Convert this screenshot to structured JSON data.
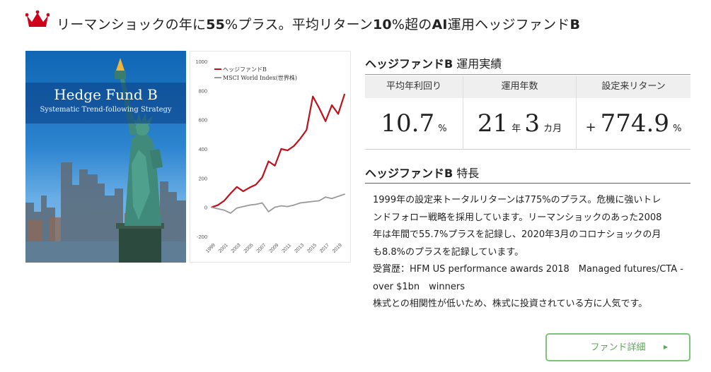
{
  "headline": {
    "part1": "リーマンショックの年に",
    "bold1": "55",
    "part2": "%プラス。平均リターン",
    "bold2": "10",
    "part3": "%超の",
    "bold3": "AI",
    "part4": "運用ヘッジファンド",
    "bold4": "B"
  },
  "icons": {
    "crown": "crown-icon",
    "arrow": "triangle-right-icon"
  },
  "colors": {
    "crown": "#d0021b",
    "fund_line": "#c0101a",
    "msci_line": "#9a9a9a",
    "feature_rule": "#c0392b",
    "button": "#7cc576"
  },
  "cover": {
    "title": "Hedge Fund B",
    "subtitle": "Systematic Trend-following Strategy"
  },
  "performance": {
    "title_bold": "ヘッジファンドB",
    "title_rest": " 運用実績",
    "avg_return": {
      "label": "平均年利回り",
      "value": "10.7",
      "unit": "%"
    },
    "years": {
      "label": "運用年数",
      "years_value": "21",
      "years_unit": "年",
      "months_value": "3",
      "months_unit": "カ月"
    },
    "total_return": {
      "label": "設定来リターン",
      "sign": "+",
      "value": "774.9",
      "unit": "%"
    }
  },
  "features": {
    "title_bold": "ヘッジファンドB",
    "title_rest": " 特長",
    "line1": "1999年の設定来トータルリターンは775%のプラス。危機に強いトレ",
    "line2": "ンドフォロー戦略を採用しています。リーマンショックのあった2008",
    "line3": "年は年間で55.7%プラスを記録し、2020年3月のコロナショックの月",
    "line4": "も8.8%のプラスを記録しています。",
    "line5": "受賞歴：HFM US performance awards 2018　Managed futures/CTA -",
    "line6": "over $1bn　winners",
    "line7": "株式との相関性が低いため、株式に投資されている方に人気です。"
  },
  "button": {
    "label": "ファンド詳細",
    "arrow": "▶"
  },
  "chart_data": {
    "type": "line",
    "title": "",
    "xlabel": "",
    "ylabel": "",
    "ylim": [
      -200,
      1000
    ],
    "y_ticks": [
      "1000",
      "800",
      "600",
      "400",
      "200",
      "0",
      "-200"
    ],
    "x_ticks": [
      "1999",
      "2001",
      "2003",
      "2005",
      "2007",
      "2009",
      "2011",
      "2013",
      "2015",
      "2017",
      "2019"
    ],
    "legend_position": "top-left",
    "grid": false,
    "x": [
      1999,
      2000,
      2001,
      2002,
      2003,
      2004,
      2005,
      2006,
      2007,
      2008,
      2009,
      2010,
      2011,
      2012,
      2013,
      2014,
      2015,
      2016,
      2017,
      2018,
      2019,
      2020
    ],
    "series": [
      {
        "name": "ヘッジファンドB",
        "color": "#c0101a",
        "values": [
          0,
          15,
          45,
          95,
          140,
          110,
          135,
          155,
          205,
          315,
          285,
          400,
          390,
          420,
          470,
          530,
          760,
          680,
          590,
          700,
          640,
          775
        ]
      },
      {
        "name": "MSCI World Index(世界株)",
        "color": "#9a9a9a",
        "values": [
          0,
          -10,
          -20,
          -40,
          -5,
          5,
          15,
          20,
          30,
          -30,
          0,
          10,
          5,
          15,
          30,
          35,
          40,
          45,
          70,
          60,
          75,
          90
        ]
      }
    ]
  }
}
